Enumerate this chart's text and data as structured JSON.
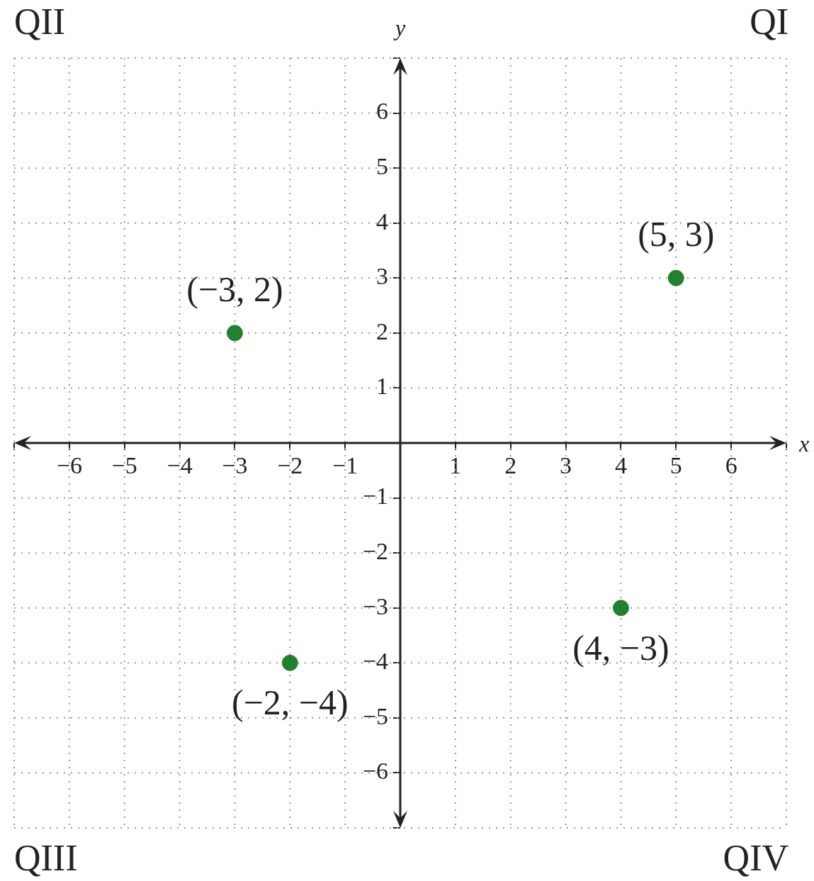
{
  "chart_data": {
    "type": "scatter",
    "xlabel": "x",
    "ylabel": "y",
    "series": [
      {
        "color": "#22802f",
        "x": [
          5,
          -3,
          -2,
          4
        ],
        "values": [
          3,
          2,
          -4,
          -3
        ]
      }
    ],
    "xlim": [
      -7,
      7
    ],
    "ylim": [
      -7,
      7
    ],
    "xticks": [
      {
        "value": -7,
        "label": null
      },
      {
        "value": -6,
        "label": "−6"
      },
      {
        "value": -5,
        "label": "−5"
      },
      {
        "value": -4,
        "label": "−4"
      },
      {
        "value": -3,
        "label": "−3"
      },
      {
        "value": -2,
        "label": "−2"
      },
      {
        "value": -1,
        "label": "−1"
      },
      1,
      2,
      3,
      4,
      5,
      6,
      {
        "value": 7,
        "label": null
      }
    ],
    "yticks": [
      {
        "value": -7,
        "label": null
      },
      {
        "value": -6,
        "label": "−6"
      },
      {
        "value": -5,
        "label": "−5"
      },
      {
        "value": -4,
        "label": "−4"
      },
      {
        "value": -3,
        "label": "−3"
      },
      {
        "value": -2,
        "label": "−2"
      },
      {
        "value": -1,
        "label": "−1"
      },
      1,
      2,
      3,
      4,
      5,
      6,
      {
        "value": 7,
        "label": null
      }
    ],
    "grid": true,
    "marker": "circle",
    "legend": false,
    "annotations": [
      {
        "text": "(5, 3)",
        "x": 5,
        "y": 3
      },
      {
        "text": "(−3, 2)",
        "x": -3,
        "y": 2
      },
      {
        "text": "(−2, −4)",
        "x": -2,
        "y": -4
      },
      {
        "text": "(4, −3)",
        "x": 4,
        "y": -3
      },
      "QII",
      "QI",
      "QIII",
      "QIV"
    ]
  }
}
